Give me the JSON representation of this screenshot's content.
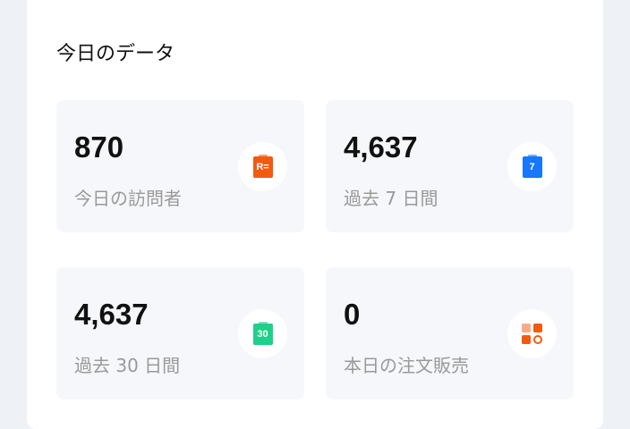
{
  "title": "今日のデータ",
  "stats": [
    {
      "value": "870",
      "label": "今日の訪問者",
      "icon": "visitor-clipboard-icon",
      "color": "#f25a0f"
    },
    {
      "value": "4,637",
      "label": "過去 7 日間",
      "icon": "calendar-7-icon",
      "icon_text": "7",
      "color": "#1677ff"
    },
    {
      "value": "4,637",
      "label": "過去 30 日間",
      "icon": "calendar-30-icon",
      "icon_text": "30",
      "color": "#1fd08a"
    },
    {
      "value": "0",
      "label": "本日の注文販売",
      "icon": "order-search-icon",
      "color": "#f25a0f"
    }
  ]
}
